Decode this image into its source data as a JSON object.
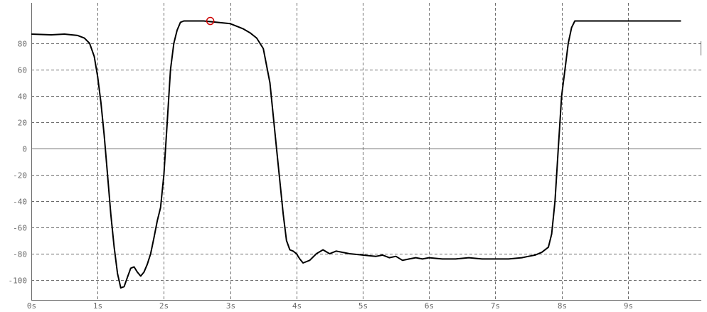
{
  "chart_data": {
    "type": "line",
    "title": "",
    "xlabel": "",
    "ylabel": "",
    "xlim": [
      0,
      10.3
    ],
    "ylim": [
      -110,
      110
    ],
    "grid": true,
    "x_ticks": [
      {
        "value": 0,
        "label": "0s"
      },
      {
        "value": 1,
        "label": "1s"
      },
      {
        "value": 2,
        "label": "2s"
      },
      {
        "value": 3,
        "label": "3s"
      },
      {
        "value": 4,
        "label": "4s"
      },
      {
        "value": 5,
        "label": "5s"
      },
      {
        "value": 6,
        "label": "6s"
      },
      {
        "value": 7,
        "label": "7s"
      },
      {
        "value": 8,
        "label": "8s"
      },
      {
        "value": 9,
        "label": "9s"
      }
    ],
    "y_ticks": [
      {
        "value": 80,
        "label": "80"
      },
      {
        "value": 60,
        "label": "60"
      },
      {
        "value": 40,
        "label": "40"
      },
      {
        "value": 20,
        "label": "20"
      },
      {
        "value": 0,
        "label": "0"
      },
      {
        "value": -20,
        "label": "-20"
      },
      {
        "value": -40,
        "label": "-40"
      },
      {
        "value": -60,
        "label": "-60"
      },
      {
        "value": -80,
        "label": "-80"
      },
      {
        "value": -100,
        "label": "-100"
      }
    ],
    "series": [
      {
        "color": "#000000",
        "points": [
          [
            0.0,
            87
          ],
          [
            0.3,
            86.5
          ],
          [
            0.5,
            87
          ],
          [
            0.7,
            86
          ],
          [
            0.8,
            84
          ],
          [
            0.88,
            80
          ],
          [
            0.95,
            70
          ],
          [
            1.0,
            55
          ],
          [
            1.05,
            35
          ],
          [
            1.1,
            10
          ],
          [
            1.15,
            -20
          ],
          [
            1.2,
            -50
          ],
          [
            1.25,
            -75
          ],
          [
            1.3,
            -95
          ],
          [
            1.35,
            -106
          ],
          [
            1.4,
            -105
          ],
          [
            1.45,
            -98
          ],
          [
            1.5,
            -91
          ],
          [
            1.55,
            -90
          ],
          [
            1.6,
            -94
          ],
          [
            1.65,
            -97
          ],
          [
            1.7,
            -94
          ],
          [
            1.75,
            -88
          ],
          [
            1.8,
            -80
          ],
          [
            1.85,
            -68
          ],
          [
            1.9,
            -55
          ],
          [
            1.95,
            -45
          ],
          [
            2.0,
            -20
          ],
          [
            2.05,
            20
          ],
          [
            2.1,
            60
          ],
          [
            2.15,
            80
          ],
          [
            2.2,
            90
          ],
          [
            2.25,
            96
          ],
          [
            2.3,
            97
          ],
          [
            2.6,
            97
          ],
          [
            2.8,
            96
          ],
          [
            3.0,
            95
          ],
          [
            3.1,
            93
          ],
          [
            3.2,
            91
          ],
          [
            3.3,
            88
          ],
          [
            3.4,
            84
          ],
          [
            3.5,
            76
          ],
          [
            3.6,
            50
          ],
          [
            3.7,
            0
          ],
          [
            3.8,
            -50
          ],
          [
            3.85,
            -70
          ],
          [
            3.9,
            -77
          ],
          [
            3.95,
            -78
          ],
          [
            4.0,
            -80
          ],
          [
            4.05,
            -84
          ],
          [
            4.1,
            -87
          ],
          [
            4.2,
            -85
          ],
          [
            4.3,
            -80
          ],
          [
            4.4,
            -77
          ],
          [
            4.5,
            -80
          ],
          [
            4.6,
            -78
          ],
          [
            4.7,
            -79
          ],
          [
            4.8,
            -80
          ],
          [
            5.0,
            -81
          ],
          [
            5.2,
            -82
          ],
          [
            5.3,
            -81
          ],
          [
            5.4,
            -83
          ],
          [
            5.5,
            -82
          ],
          [
            5.6,
            -85
          ],
          [
            5.7,
            -84
          ],
          [
            5.8,
            -83
          ],
          [
            5.9,
            -84
          ],
          [
            6.0,
            -83
          ],
          [
            6.2,
            -84
          ],
          [
            6.4,
            -84
          ],
          [
            6.6,
            -83
          ],
          [
            6.8,
            -84
          ],
          [
            7.0,
            -84
          ],
          [
            7.2,
            -84
          ],
          [
            7.4,
            -83
          ],
          [
            7.5,
            -82
          ],
          [
            7.6,
            -81
          ],
          [
            7.7,
            -79
          ],
          [
            7.8,
            -75
          ],
          [
            7.85,
            -65
          ],
          [
            7.9,
            -40
          ],
          [
            7.95,
            0
          ],
          [
            8.0,
            40
          ],
          [
            8.05,
            60
          ],
          [
            8.1,
            80
          ],
          [
            8.15,
            92
          ],
          [
            8.2,
            97
          ],
          [
            8.5,
            97
          ],
          [
            9.0,
            97
          ],
          [
            9.5,
            97
          ],
          [
            9.8,
            97
          ]
        ]
      }
    ],
    "marker": {
      "x": 2.7,
      "y": 97,
      "color": "#cc0000"
    }
  }
}
